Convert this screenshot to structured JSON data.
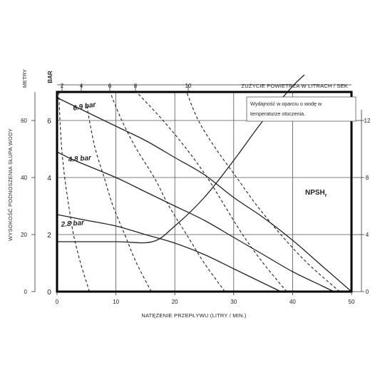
{
  "chart_data": {
    "type": "line",
    "x_axis": {
      "label": "NATĘŻENIE PRZEPŁYWU (LITRY / MIN.)",
      "min": 0,
      "max": 50,
      "ticks": [
        0,
        10,
        20,
        30,
        40,
        50
      ],
      "tick_labels": [
        "0",
        "10",
        "20",
        "30",
        "40",
        "50"
      ]
    },
    "y_axis_left_meters": {
      "label": "WYSOKOŚĆ PODNOSZENIA SŁUPA WODY",
      "unit": "METRY",
      "min": 0,
      "max": 70,
      "ticks": [
        0,
        20,
        40,
        60
      ],
      "tick_labels": [
        "0",
        "20",
        "40",
        "60"
      ]
    },
    "y_axis_left_bar": {
      "unit": "BAR",
      "ticks": [
        0,
        2,
        4,
        6
      ],
      "tick_labels": [
        "0",
        "2",
        "4",
        "6"
      ]
    },
    "y_axis_right": {
      "min": 0,
      "max": 14,
      "ticks": [
        0,
        4,
        8,
        12
      ],
      "tick_labels": [
        "0",
        "4",
        "8",
        "12"
      ]
    },
    "x_axis_top": {
      "label": "ZUŻYCIE POWIETRZA W LITRACH / SEK",
      "tick_labels": [
        "2",
        "4",
        "6",
        "8",
        "10"
      ]
    },
    "grid": true,
    "annotation": [
      "Wydajność w oparciu o wodę w",
      "temperaturze otoczenia."
    ],
    "pressure_curves": [
      {
        "name": "6.9 bar",
        "points": [
          [
            0,
            68
          ],
          [
            3,
            65
          ],
          [
            10,
            58
          ],
          [
            15,
            53
          ],
          [
            20,
            47
          ],
          [
            25,
            41
          ],
          [
            30,
            33
          ],
          [
            35,
            26
          ],
          [
            40,
            18
          ],
          [
            45,
            9
          ],
          [
            50,
            0
          ]
        ]
      },
      {
        "name": "4.8 bar",
        "points": [
          [
            0,
            49
          ],
          [
            3,
            46
          ],
          [
            10,
            40
          ],
          [
            15,
            35
          ],
          [
            20,
            30
          ],
          [
            25,
            25
          ],
          [
            30,
            19
          ],
          [
            35,
            13
          ],
          [
            40,
            7
          ],
          [
            45,
            2
          ],
          [
            47,
            0
          ]
        ]
      },
      {
        "name": "2.8 bar",
        "points": [
          [
            0,
            27
          ],
          [
            5,
            25
          ],
          [
            10,
            23
          ],
          [
            15,
            20
          ],
          [
            20,
            17
          ],
          [
            25,
            13
          ],
          [
            30,
            8
          ],
          [
            35,
            3
          ],
          [
            38,
            0
          ]
        ]
      }
    ],
    "npsh_curve": {
      "name": "NPSH",
      "subscript": "r",
      "points": [
        [
          0,
          1.75
        ],
        [
          10,
          1.75
        ],
        [
          16.2,
          1.75
        ],
        [
          20,
          2.3
        ],
        [
          25,
          3.3
        ],
        [
          30,
          4.6
        ],
        [
          35,
          6.0
        ],
        [
          40,
          7.2
        ],
        [
          42,
          7.6
        ]
      ]
    },
    "air_consumption_curves": [
      {
        "label": "2",
        "points": [
          [
            5.5,
            0
          ],
          [
            4,
            10
          ],
          [
            2.8,
            20
          ],
          [
            2,
            30
          ],
          [
            1.3,
            40
          ],
          [
            0.8,
            50
          ],
          [
            0.5,
            60
          ],
          [
            0.3,
            70
          ]
        ]
      },
      {
        "label": "4",
        "points": [
          [
            16,
            0
          ],
          [
            13.5,
            10
          ],
          [
            11.5,
            20
          ],
          [
            9.5,
            30
          ],
          [
            8,
            40
          ],
          [
            6.5,
            50
          ],
          [
            5.5,
            60
          ],
          [
            5,
            66
          ]
        ]
      },
      {
        "label": "6",
        "points": [
          [
            28.5,
            0
          ],
          [
            25,
            10
          ],
          [
            22,
            20
          ],
          [
            19,
            30
          ],
          [
            16.5,
            40
          ],
          [
            13.5,
            50
          ],
          [
            11,
            60
          ],
          [
            9,
            70
          ]
        ]
      },
      {
        "label": "8",
        "points": [
          [
            39,
            0
          ],
          [
            35,
            10
          ],
          [
            31.5,
            20
          ],
          [
            28.5,
            30
          ],
          [
            25.5,
            40
          ],
          [
            22,
            50
          ],
          [
            18,
            60
          ],
          [
            13.5,
            70
          ]
        ]
      },
      {
        "label": "10",
        "points": [
          [
            48,
            0
          ],
          [
            42.5,
            10
          ],
          [
            38,
            20
          ],
          [
            34,
            30
          ],
          [
            30.5,
            40
          ],
          [
            27,
            50
          ],
          [
            24,
            60
          ],
          [
            22,
            70
          ]
        ]
      }
    ]
  }
}
